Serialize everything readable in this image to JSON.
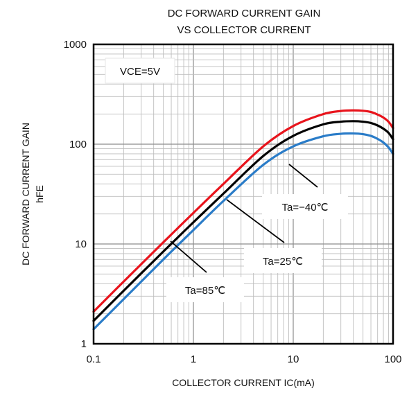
{
  "chart_data": {
    "type": "line",
    "title": [
      "DC FORWARD CURRENT GAIN",
      "VS COLLECTOR CURRENT"
    ],
    "xlabel": "COLLECTOR CURRENT  IC(mA)",
    "ylabel": [
      "DC FORWARD CURRENT GAIN",
      "hFE"
    ],
    "x_scale": "log",
    "y_scale": "log",
    "xlim": [
      0.1,
      100
    ],
    "ylim": [
      1,
      1000
    ],
    "x_ticks": [
      0.1,
      1,
      10,
      100
    ],
    "x_tick_labels": [
      "0.1",
      "1",
      "10",
      "100"
    ],
    "y_ticks": [
      1,
      10,
      100,
      1000
    ],
    "y_tick_labels": [
      "1",
      "10",
      "100",
      "1000"
    ],
    "grid": true,
    "condition_label": "VCE=5V",
    "series": [
      {
        "name": "Ta=85℃",
        "color": "#e8141c",
        "x": [
          0.1,
          0.2,
          0.5,
          1,
          2,
          5,
          10,
          20,
          30,
          40,
          50,
          60,
          70,
          80,
          90,
          100
        ],
        "y": [
          2.1,
          4.2,
          10.4,
          20.5,
          40,
          95,
          152,
          200,
          215,
          218,
          216,
          210,
          198,
          185,
          168,
          145
        ]
      },
      {
        "name": "Ta=25℃",
        "color": "#000000",
        "x": [
          0.1,
          0.2,
          0.5,
          1,
          2,
          5,
          10,
          20,
          30,
          40,
          50,
          60,
          70,
          80,
          90,
          100
        ],
        "y": [
          1.7,
          3.4,
          8.4,
          16.5,
          32,
          76,
          121,
          158,
          168,
          170,
          168,
          163,
          154,
          143,
          130,
          112
        ]
      },
      {
        "name": "Ta=−40℃",
        "color": "#2a7cc8",
        "x": [
          0.1,
          0.2,
          0.5,
          1,
          2,
          5,
          10,
          20,
          30,
          40,
          50,
          60,
          70,
          80,
          90,
          100
        ],
        "y": [
          1.4,
          2.8,
          7.0,
          13.8,
          27,
          62,
          95,
          120,
          127,
          128,
          126,
          121,
          113,
          104,
          93,
          80
        ]
      }
    ],
    "annotations": [
      "Ta=−40℃",
      "Ta=25℃",
      "Ta=85℃"
    ]
  }
}
